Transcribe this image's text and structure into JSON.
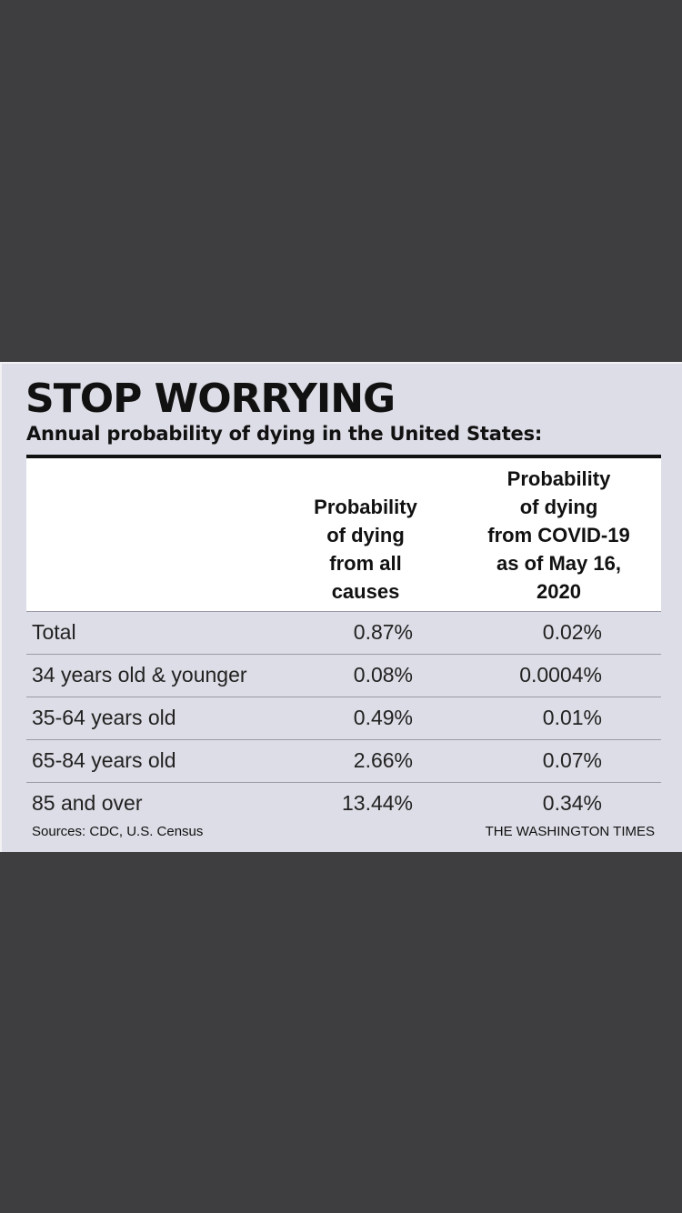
{
  "colors": {
    "viewer_background": "#3e3e40",
    "graphic_background": "#dcdde6",
    "header_background": "#ffffff",
    "text": "#111111"
  },
  "chart_data": {
    "type": "table",
    "title": "STOP WORRYING",
    "subtitle": "Annual probability of dying in the United States:",
    "columns": [
      "",
      "Probability\nof dying\nfrom all\ncauses",
      "Probability\nof dying\nfrom COVID-19\nas of May 16,\n2020"
    ],
    "rows": [
      {
        "label": "Total",
        "all_causes": "0.87%",
        "covid": "0.02%"
      },
      {
        "label": "34 years old & younger",
        "all_causes": "0.08%",
        "covid": "0.0004%"
      },
      {
        "label": "35-64 years old",
        "all_causes": "0.49%",
        "covid": "0.01%"
      },
      {
        "label": "65-84 years old",
        "all_causes": "2.66%",
        "covid": "0.07%"
      },
      {
        "label": "85 and over",
        "all_causes": "13.44%",
        "covid": "0.34%"
      }
    ],
    "source": "Sources: CDC, U.S. Census",
    "credit": "THE WASHINGTON TIMES"
  }
}
